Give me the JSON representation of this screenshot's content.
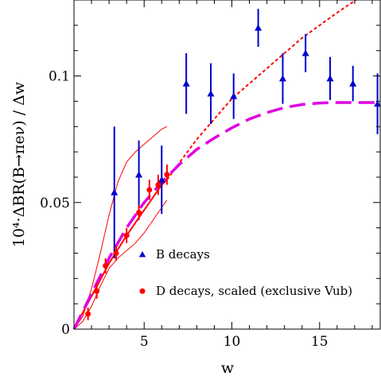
{
  "chart_data": {
    "type": "scatter",
    "title": "",
    "xlabel": "w",
    "ylabel": "10⁴·ΔBR(B→πeν) / Δw",
    "xlim": [
      1,
      18.5
    ],
    "ylim": [
      0,
      0.13
    ],
    "xticks": [
      5,
      10,
      15
    ],
    "xtick_labels": [
      "5",
      "10",
      "15"
    ],
    "yticks": [
      0,
      0.05,
      0.1
    ],
    "ytick_labels": [
      "0",
      "0.05",
      "0.1"
    ],
    "grid": false,
    "legend_position": "bottom-right",
    "series": [
      {
        "name": "B decays",
        "marker": "triangle",
        "color": "#0000cc",
        "x": [
          3.3,
          4.7,
          6.0,
          7.4,
          8.8,
          10.1,
          11.5,
          12.9,
          14.2,
          15.6,
          16.9,
          18.3
        ],
        "y": [
          0.054,
          0.061,
          0.059,
          0.097,
          0.093,
          0.092,
          0.119,
          0.099,
          0.109,
          0.099,
          0.097,
          0.089
        ],
        "yerr": [
          0.026,
          0.0135,
          0.0135,
          0.012,
          0.012,
          0.009,
          0.0075,
          0.01,
          0.0075,
          0.0085,
          0.007,
          0.012
        ]
      },
      {
        "name": "D decays, scaled (exclusive Vub)",
        "marker": "circle",
        "color": "#ff0000",
        "x": [
          1.8,
          2.3,
          2.8,
          3.4,
          4.0,
          4.7,
          5.3,
          5.8,
          6.3
        ],
        "y": [
          0.006,
          0.015,
          0.025,
          0.03,
          0.037,
          0.046,
          0.055,
          0.057,
          0.061
        ],
        "yerr": [
          0.0025,
          0.003,
          0.003,
          0.003,
          0.003,
          0.003,
          0.004,
          0.004,
          0.004
        ]
      }
    ],
    "curves": [
      {
        "role": "D fit central",
        "style": "solid",
        "color": "#ff0000",
        "x": [
          1,
          2,
          3,
          4,
          5,
          6,
          6.3
        ],
        "y": [
          0,
          0.013,
          0.026,
          0.037,
          0.047,
          0.057,
          0.059
        ]
      },
      {
        "role": "D fit upper band",
        "style": "solid-thin",
        "color": "#ff0000",
        "x": [
          1,
          1.5,
          2,
          2.5,
          3,
          3.5,
          4,
          4.5,
          5,
          5.5,
          6,
          6.3
        ],
        "y": [
          0,
          0.005,
          0.016,
          0.03,
          0.045,
          0.058,
          0.066,
          0.07,
          0.073,
          0.076,
          0.079,
          0.08
        ]
      },
      {
        "role": "D fit lower band",
        "style": "solid-thin",
        "color": "#ff0000",
        "x": [
          1,
          1.5,
          2,
          2.5,
          3,
          3.5,
          4,
          4.5,
          5,
          5.5,
          6,
          6.3
        ],
        "y": [
          0,
          0.003,
          0.009,
          0.017,
          0.024,
          0.028,
          0.031,
          0.034,
          0.038,
          0.043,
          0.048,
          0.051
        ]
      },
      {
        "role": "D fit extrapolation",
        "style": "dotted",
        "color": "#ff0000",
        "x": [
          6.3,
          8,
          10,
          12,
          14,
          16,
          17.5
        ],
        "y": [
          0.059,
          0.075,
          0.091,
          0.103,
          0.115,
          0.125,
          0.132
        ]
      },
      {
        "role": "model curve",
        "style": "dashed",
        "color": "#e000e0",
        "x": [
          1,
          2,
          3,
          4,
          5,
          6,
          7,
          8,
          9,
          10,
          11,
          12,
          13,
          14,
          15,
          16,
          17,
          18,
          18.5
        ],
        "y": [
          0,
          0.014,
          0.028,
          0.04,
          0.05,
          0.058,
          0.065,
          0.071,
          0.0755,
          0.0795,
          0.083,
          0.0855,
          0.0875,
          0.0887,
          0.0893,
          0.0895,
          0.0895,
          0.0895,
          0.0895
        ]
      }
    ]
  }
}
